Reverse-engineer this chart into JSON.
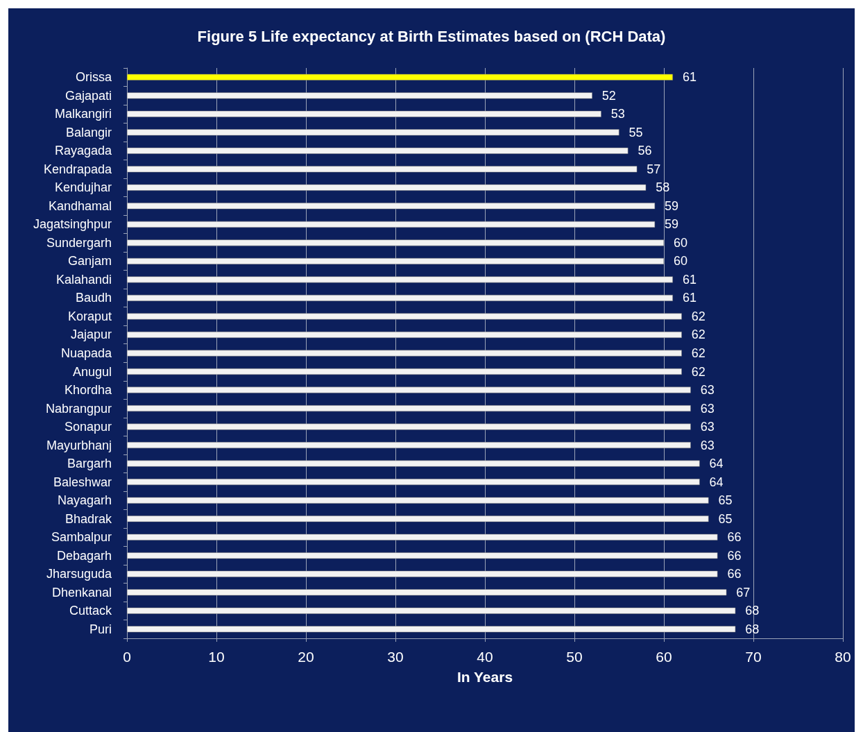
{
  "chart_data": {
    "type": "bar",
    "orientation": "horizontal",
    "title": "Figure 5 Life expectancy at Birth Estimates based on (RCH Data)",
    "xlabel": "In Years",
    "categories": [
      "Orissa",
      "Gajapati",
      "Malkangiri",
      "Balangir",
      "Rayagada",
      "Kendrapada",
      "Kendujhar",
      "Kandhamal",
      "Jagatsinghpur",
      "Sundergarh",
      "Ganjam",
      "Kalahandi",
      "Baudh",
      "Koraput",
      "Jajapur",
      "Nuapada",
      "Anugul",
      "Khordha",
      "Nabrangpur",
      "Sonapur",
      "Mayurbhanj",
      "Bargarh",
      "Baleshwar",
      "Nayagarh",
      "Bhadrak",
      "Sambalpur",
      "Debagarh",
      "Jharsuguda",
      "Dhenkanal",
      "Cuttack",
      "Puri"
    ],
    "values": [
      61,
      52,
      53,
      55,
      56,
      57,
      58,
      59,
      59,
      60,
      60,
      61,
      61,
      62,
      62,
      62,
      62,
      63,
      63,
      63,
      63,
      64,
      64,
      65,
      65,
      66,
      66,
      66,
      67,
      68,
      68
    ],
    "colors": [
      "#ffff00",
      "#f2f2f2",
      "#f2f2f2",
      "#f2f2f2",
      "#f2f2f2",
      "#f2f2f2",
      "#f2f2f2",
      "#f2f2f2",
      "#f2f2f2",
      "#f2f2f2",
      "#f2f2f2",
      "#f2f2f2",
      "#f2f2f2",
      "#f2f2f2",
      "#f2f2f2",
      "#f2f2f2",
      "#f2f2f2",
      "#f2f2f2",
      "#f2f2f2",
      "#f2f2f2",
      "#f2f2f2",
      "#f2f2f2",
      "#f2f2f2",
      "#f2f2f2",
      "#f2f2f2",
      "#f2f2f2",
      "#f2f2f2",
      "#f2f2f2",
      "#f2f2f2",
      "#f2f2f2",
      "#f2f2f2"
    ],
    "xlim": [
      0,
      80
    ],
    "xticks": [
      0,
      10,
      20,
      30,
      40,
      50,
      60,
      70,
      80
    ],
    "grid": "x",
    "data_labels": true
  }
}
